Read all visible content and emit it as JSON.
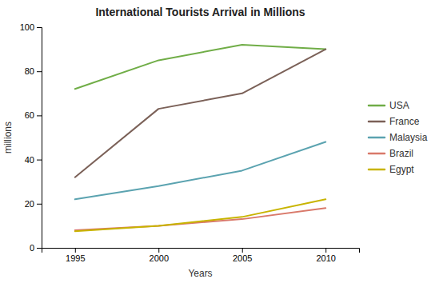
{
  "chart_data": {
    "type": "line",
    "title": "International Tourists Arrival in Millions",
    "xlabel": "Years",
    "ylabel": "millions",
    "x": [
      1995,
      2000,
      2005,
      2010
    ],
    "series": [
      {
        "name": "USA",
        "color": "#70ad47",
        "values": [
          72,
          85,
          92,
          90
        ]
      },
      {
        "name": "France",
        "color": "#7b6158",
        "values": [
          32,
          63,
          70,
          90
        ]
      },
      {
        "name": "Malaysia",
        "color": "#5ba3b0",
        "values": [
          22,
          28,
          35,
          48
        ]
      },
      {
        "name": "Brazil",
        "color": "#d9796a",
        "values": [
          8,
          10,
          13,
          18
        ]
      },
      {
        "name": "Egypt",
        "color": "#c8b400",
        "values": [
          7.5,
          10,
          14,
          22
        ]
      }
    ],
    "xlim": [
      1993,
      2012
    ],
    "xticks": [
      1995,
      2000,
      2005,
      2010
    ],
    "ylim": [
      0,
      100
    ],
    "yticks": [
      0,
      20,
      40,
      60,
      80,
      100
    ],
    "grid": false,
    "legend": "right"
  }
}
